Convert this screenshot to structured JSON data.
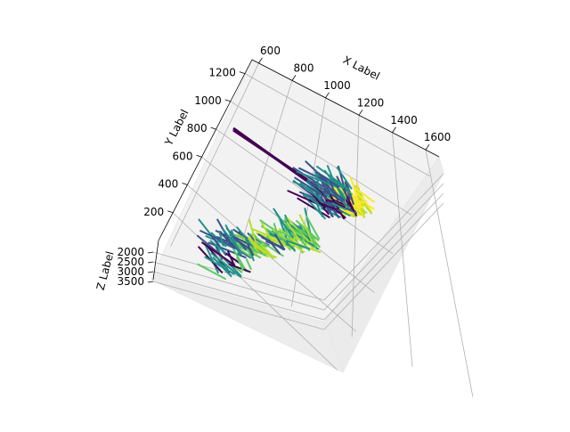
{
  "chart_data": {
    "type": "3d-quiver",
    "title": "",
    "xlabel": "X Label",
    "ylabel": "Y Label",
    "zlabel": "Z Label",
    "x_ticks": [
      "600",
      "800",
      "1000",
      "1200",
      "1400",
      "1600"
    ],
    "y_ticks": [
      "200",
      "400",
      "600",
      "800",
      "1000",
      "1200"
    ],
    "z_ticks": [
      "2000",
      "2500",
      "3000",
      "3500"
    ],
    "xlim": [
      560,
      1680
    ],
    "ylim": [
      0,
      1300
    ],
    "zlim": [
      1800,
      3700
    ],
    "grid": true,
    "colormap": "viridis",
    "colors": [
      "#440154",
      "#3b528b",
      "#21918c",
      "#5ec962",
      "#b5de2b",
      "#fde725"
    ],
    "clusters": [
      {
        "x": 1420,
        "y": 760,
        "count": 60,
        "colors": [
          "#fde725",
          "#fde725",
          "#b5de2b"
        ]
      },
      {
        "x": 1340,
        "y": 700,
        "count": 40,
        "colors": [
          "#3b528b",
          "#21918c",
          "#440154"
        ]
      },
      {
        "x": 1280,
        "y": 780,
        "count": 30,
        "colors": [
          "#21918c",
          "#3b528b"
        ]
      },
      {
        "x": 1250,
        "y": 400,
        "count": 50,
        "colors": [
          "#b5de2b",
          "#5ec962",
          "#21918c"
        ]
      },
      {
        "x": 1100,
        "y": 260,
        "count": 40,
        "colors": [
          "#5ec962",
          "#b5de2b",
          "#3b528b"
        ]
      },
      {
        "x": 960,
        "y": 160,
        "count": 22,
        "colors": [
          "#3b528b",
          "#21918c"
        ]
      },
      {
        "x": 1000,
        "y": 50,
        "count": 18,
        "colors": [
          "#440154",
          "#5ec962",
          "#21918c"
        ]
      }
    ],
    "long_arrows": [
      {
        "x": 1420,
        "y": 740,
        "color": "#440154"
      },
      {
        "x": 1430,
        "y": 720,
        "color": "#440154"
      }
    ]
  }
}
